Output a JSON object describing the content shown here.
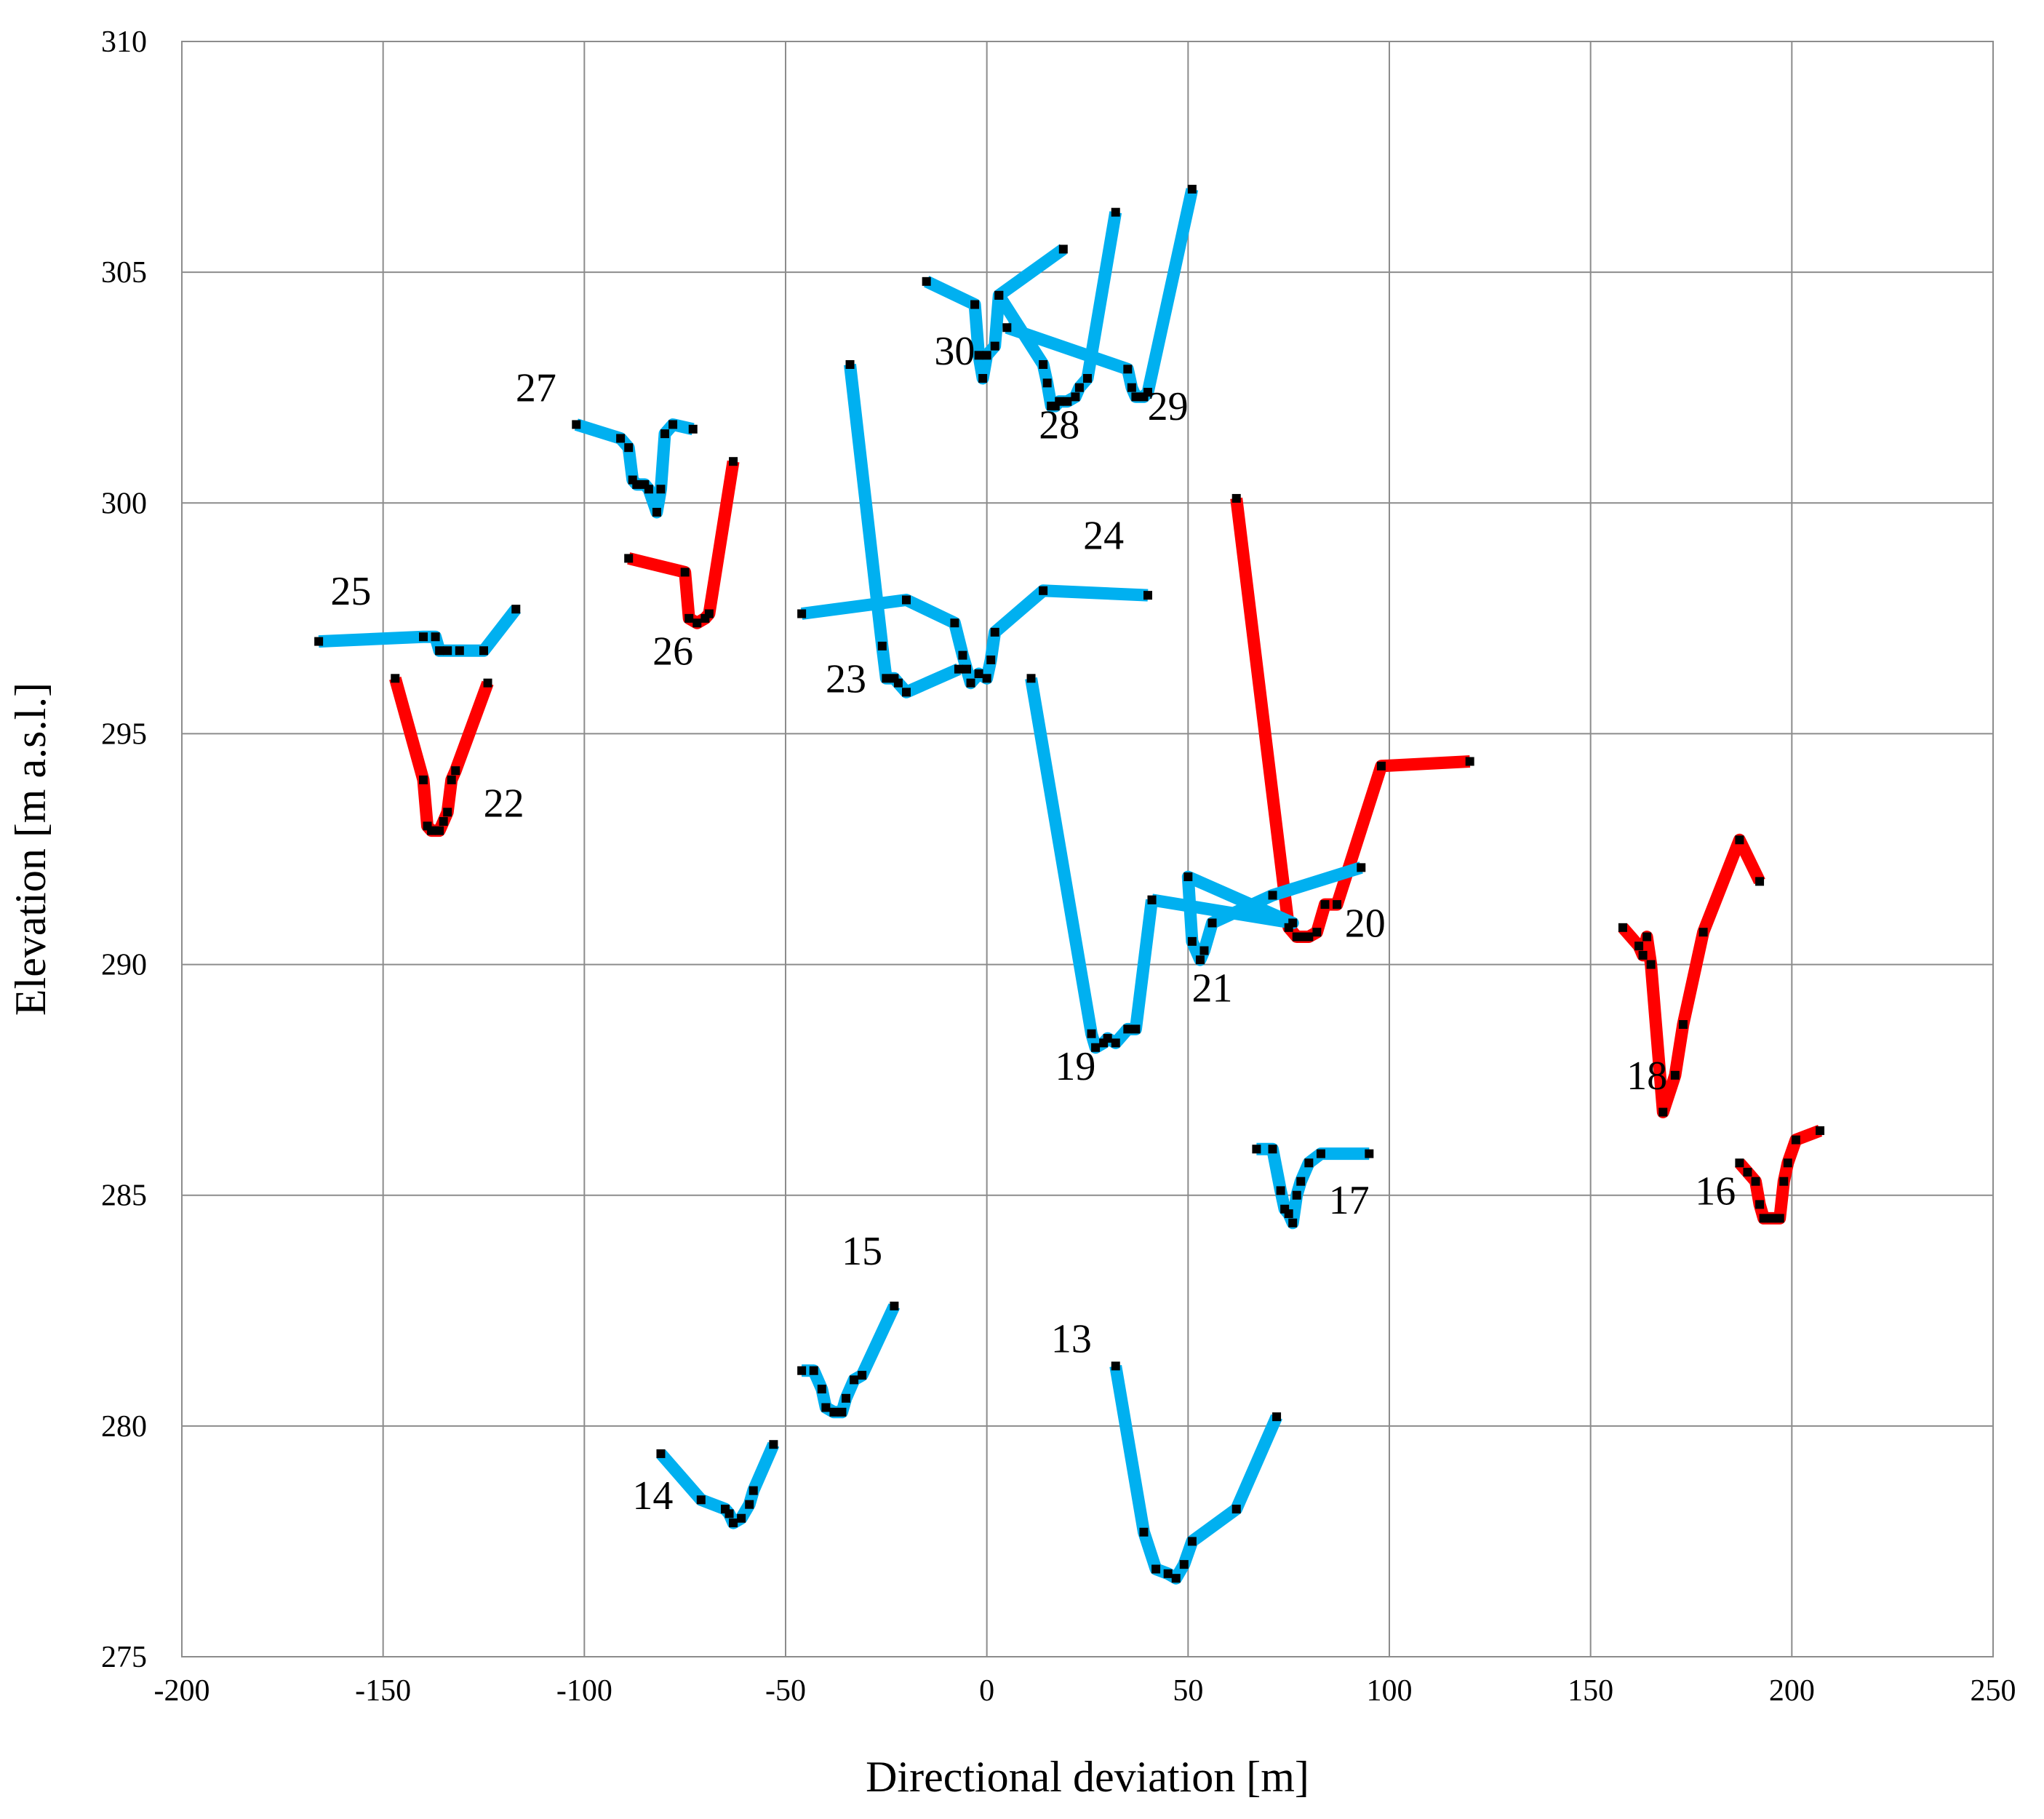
{
  "chart_data": {
    "type": "line",
    "xlabel": "Directional deviation [m]",
    "ylabel": "Elevation [m a.s.l.]",
    "xlim": [
      -200,
      250
    ],
    "ylim": [
      275,
      310
    ],
    "x_ticks": [
      "-200",
      "-150",
      "-100",
      "-50",
      "0",
      "50",
      "100",
      "150",
      "200",
      "250"
    ],
    "y_ticks": [
      "275",
      "280",
      "285",
      "290",
      "295",
      "300",
      "305",
      "310"
    ],
    "grid": true,
    "legend": "none",
    "colors": {
      "blue": "#00b0f0",
      "red": "#ff0000",
      "marker": "#000000"
    },
    "series": [
      {
        "name": "13",
        "color": "blue",
        "points": [
          [
            32,
            281.3
          ],
          [
            39,
            277.7
          ],
          [
            42,
            276.9
          ],
          [
            45,
            276.8
          ],
          [
            47,
            276.7
          ],
          [
            49,
            277.0
          ],
          [
            51,
            277.5
          ],
          [
            62,
            278.2
          ],
          [
            72,
            280.2
          ]
        ]
      },
      {
        "name": "14",
        "color": "blue",
        "points": [
          [
            -81,
            279.4
          ],
          [
            -71,
            278.4
          ],
          [
            -65,
            278.2
          ],
          [
            -64,
            278.1
          ],
          [
            -63,
            277.9
          ],
          [
            -61,
            278.0
          ],
          [
            -59,
            278.3
          ],
          [
            -58,
            278.6
          ],
          [
            -53,
            279.6
          ]
        ]
      },
      {
        "name": "15",
        "color": "blue",
        "points": [
          [
            -46,
            281.2
          ],
          [
            -43,
            281.2
          ],
          [
            -41,
            280.8
          ],
          [
            -40,
            280.4
          ],
          [
            -38,
            280.3
          ],
          [
            -36,
            280.3
          ],
          [
            -35,
            280.6
          ],
          [
            -33,
            281.0
          ],
          [
            -31,
            281.1
          ],
          [
            -23,
            282.6
          ]
        ]
      },
      {
        "name": "16",
        "color": "red",
        "points": [
          [
            187,
            285.7
          ],
          [
            189,
            285.5
          ],
          [
            191,
            285.3
          ],
          [
            192,
            284.8
          ],
          [
            193,
            284.5
          ],
          [
            195,
            284.5
          ],
          [
            197,
            284.5
          ],
          [
            198,
            285.3
          ],
          [
            199,
            285.7
          ],
          [
            201,
            286.2
          ],
          [
            207,
            286.4
          ]
        ]
      },
      {
        "name": "17",
        "color": "blue",
        "points": [
          [
            67,
            286.0
          ],
          [
            71,
            286.0
          ],
          [
            73,
            285.1
          ],
          [
            74,
            284.7
          ],
          [
            75,
            284.6
          ],
          [
            76,
            284.4
          ],
          [
            77,
            285.0
          ],
          [
            78,
            285.3
          ],
          [
            80,
            285.7
          ],
          [
            83,
            285.9
          ],
          [
            95,
            285.9
          ]
        ]
      },
      {
        "name": "18",
        "color": "red",
        "points": [
          [
            158,
            290.8
          ],
          [
            162,
            290.4
          ],
          [
            163,
            290.2
          ],
          [
            164,
            290.6
          ],
          [
            165,
            290.0
          ],
          [
            168,
            286.8
          ],
          [
            171,
            287.6
          ],
          [
            173,
            288.7
          ],
          [
            178,
            290.7
          ],
          [
            187,
            292.7
          ],
          [
            192,
            291.8
          ]
        ]
      },
      {
        "name": "19",
        "color": "blue",
        "points": [
          [
            11,
            296.2
          ],
          [
            26,
            288.5
          ],
          [
            27,
            288.2
          ],
          [
            29,
            288.3
          ],
          [
            30,
            288.4
          ],
          [
            32,
            288.3
          ],
          [
            35,
            288.6
          ],
          [
            37,
            288.6
          ],
          [
            41,
            291.4
          ]
        ]
      },
      {
        "name": "20",
        "color": "red",
        "points": [
          [
            62,
            300.1
          ],
          [
            75,
            290.8
          ],
          [
            77,
            290.6
          ],
          [
            78,
            290.6
          ],
          [
            80,
            290.6
          ],
          [
            82,
            290.7
          ],
          [
            84,
            291.3
          ],
          [
            87,
            291.3
          ],
          [
            98,
            294.3
          ],
          [
            120,
            294.4
          ]
        ]
      },
      {
        "name": "21",
        "color": "blue",
        "points": [
          [
            41,
            291.4
          ],
          [
            76,
            290.9
          ],
          [
            50,
            291.9
          ],
          [
            51,
            290.5
          ],
          [
            53,
            290.1
          ],
          [
            54,
            290.3
          ],
          [
            56,
            290.9
          ],
          [
            71,
            291.5
          ],
          [
            93,
            292.1
          ]
        ]
      },
      {
        "name": "22",
        "color": "red",
        "points": [
          [
            -147,
            296.2
          ],
          [
            -140,
            294.0
          ],
          [
            -139,
            293.0
          ],
          [
            -138,
            292.9
          ],
          [
            -136,
            292.9
          ],
          [
            -135,
            293.1
          ],
          [
            -134,
            293.3
          ],
          [
            -133,
            294.0
          ],
          [
            -132,
            294.2
          ],
          [
            -124,
            296.1
          ]
        ]
      },
      {
        "name": "23",
        "color": "blue",
        "points": [
          [
            -34,
            303.0
          ],
          [
            -26,
            296.9
          ],
          [
            -25,
            296.2
          ],
          [
            -23,
            296.2
          ],
          [
            -22,
            296.1
          ],
          [
            -20,
            295.9
          ],
          [
            -7,
            296.4
          ]
        ]
      },
      {
        "name": "24",
        "color": "blue",
        "points": [
          [
            -46,
            297.6
          ],
          [
            -20,
            297.9
          ],
          [
            -8,
            297.4
          ],
          [
            -6,
            296.7
          ],
          [
            -5,
            296.4
          ],
          [
            -4,
            296.1
          ],
          [
            -2,
            296.3
          ],
          [
            0,
            296.2
          ],
          [
            1,
            296.6
          ],
          [
            2,
            297.2
          ],
          [
            14,
            298.1
          ],
          [
            40,
            298.0
          ]
        ]
      },
      {
        "name": "25",
        "color": "blue",
        "points": [
          [
            -166,
            297.0
          ],
          [
            -140,
            297.1
          ],
          [
            -137,
            297.1
          ],
          [
            -136,
            296.8
          ],
          [
            -134,
            296.8
          ],
          [
            -131,
            296.8
          ],
          [
            -125,
            296.8
          ],
          [
            -117,
            297.7
          ]
        ]
      },
      {
        "name": "26",
        "color": "red",
        "points": [
          [
            -89,
            298.8
          ],
          [
            -75,
            298.5
          ],
          [
            -74,
            297.5
          ],
          [
            -72,
            297.4
          ],
          [
            -70,
            297.5
          ],
          [
            -69,
            297.6
          ],
          [
            -63,
            300.9
          ]
        ]
      },
      {
        "name": "27",
        "color": "blue",
        "points": [
          [
            -102,
            301.7
          ],
          [
            -91,
            301.4
          ],
          [
            -89,
            301.2
          ],
          [
            -88,
            300.5
          ],
          [
            -87,
            300.4
          ],
          [
            -85,
            300.4
          ],
          [
            -84,
            300.3
          ],
          [
            -82,
            299.8
          ],
          [
            -81,
            300.3
          ],
          [
            -80,
            301.5
          ],
          [
            -78,
            301.7
          ],
          [
            -73,
            301.6
          ]
        ]
      },
      {
        "name": "28",
        "color": "blue",
        "points": [
          [
            3,
            304.5
          ],
          [
            14,
            303.0
          ],
          [
            15,
            302.6
          ],
          [
            16,
            302.1
          ],
          [
            17,
            302.1
          ],
          [
            18,
            302.2
          ],
          [
            20,
            302.2
          ],
          [
            22,
            302.3
          ],
          [
            23,
            302.5
          ],
          [
            25,
            302.7
          ],
          [
            32,
            306.3
          ]
        ]
      },
      {
        "name": "29",
        "color": "blue",
        "points": [
          [
            5,
            303.8
          ],
          [
            35,
            302.9
          ],
          [
            36,
            302.5
          ],
          [
            37,
            302.3
          ],
          [
            39,
            302.3
          ],
          [
            40,
            302.4
          ],
          [
            51,
            306.8
          ]
        ]
      },
      {
        "name": "30",
        "color": "blue",
        "points": [
          [
            -15,
            304.8
          ],
          [
            -3,
            304.3
          ],
          [
            -2,
            303.2
          ],
          [
            -1,
            302.7
          ],
          [
            0,
            303.2
          ],
          [
            2,
            303.4
          ],
          [
            3,
            304.5
          ],
          [
            19,
            305.5
          ]
        ]
      }
    ],
    "annotations": [
      {
        "text": "13",
        "x": 21,
        "y": 281.6
      },
      {
        "text": "14",
        "x": -83,
        "y": 278.2
      },
      {
        "text": "15",
        "x": -31,
        "y": 283.5
      },
      {
        "text": "16",
        "x": 181,
        "y": 284.8
      },
      {
        "text": "17",
        "x": 90,
        "y": 284.6
      },
      {
        "text": "18",
        "x": 164,
        "y": 287.3
      },
      {
        "text": "19",
        "x": 22,
        "y": 287.5
      },
      {
        "text": "20",
        "x": 94,
        "y": 290.6
      },
      {
        "text": "21",
        "x": 56,
        "y": 289.2
      },
      {
        "text": "22",
        "x": -120,
        "y": 293.2
      },
      {
        "text": "23",
        "x": -35,
        "y": 295.9
      },
      {
        "text": "24",
        "x": 29,
        "y": 299.0
      },
      {
        "text": "25",
        "x": -158,
        "y": 297.8
      },
      {
        "text": "26",
        "x": -78,
        "y": 296.5
      },
      {
        "text": "27",
        "x": -112,
        "y": 302.2
      },
      {
        "text": "28",
        "x": 18,
        "y": 301.4
      },
      {
        "text": "29",
        "x": 45,
        "y": 301.8
      },
      {
        "text": "30",
        "x": -8,
        "y": 303.0
      }
    ]
  }
}
